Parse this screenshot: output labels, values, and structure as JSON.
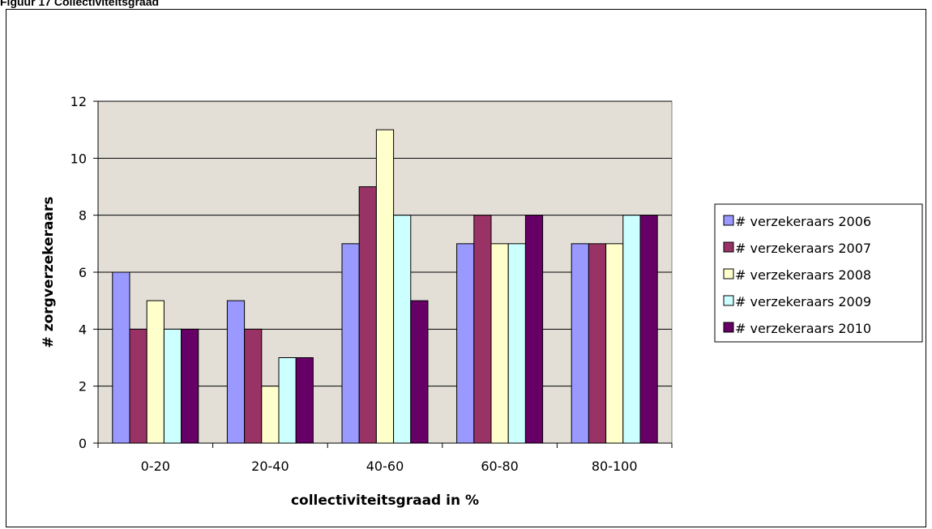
{
  "caption": "Figuur 17 Collectiviteitsgraad",
  "chart_data": {
    "type": "bar",
    "title": "",
    "xlabel": "collectiviteitsgraad in %",
    "ylabel": "# zorgverzekeraars",
    "categories": [
      "0-20",
      "20-40",
      "40-60",
      "60-80",
      "80-100"
    ],
    "ylim": [
      0,
      12
    ],
    "yticks": [
      0,
      2,
      4,
      6,
      8,
      10,
      12
    ],
    "grid": true,
    "legend_position": "right",
    "plot_background": "#E3DFD7",
    "series": [
      {
        "name": "# verzekeraars 2006",
        "color": "#9999FF",
        "values": [
          6,
          5,
          7,
          7,
          7
        ]
      },
      {
        "name": "# verzekeraars 2007",
        "color": "#993366",
        "values": [
          4,
          4,
          9,
          8,
          7
        ]
      },
      {
        "name": "# verzekeraars 2008",
        "color": "#FFFFCC",
        "values": [
          5,
          2,
          11,
          7,
          7
        ]
      },
      {
        "name": "# verzekeraars 2009",
        "color": "#CCFFFF",
        "values": [
          4,
          3,
          8,
          7,
          8
        ]
      },
      {
        "name": "# verzekeraars 2010",
        "color": "#660066",
        "values": [
          4,
          3,
          5,
          8,
          8
        ]
      }
    ]
  }
}
